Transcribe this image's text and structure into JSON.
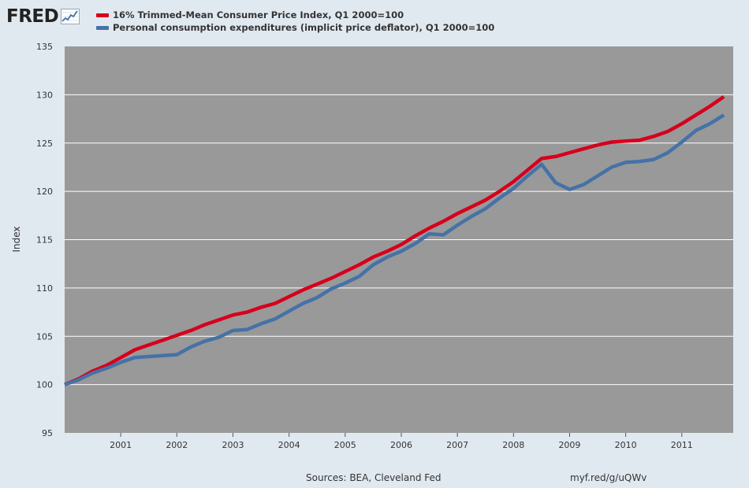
{
  "header": {
    "logo_text": "FRED",
    "logo_icon": "trend-graph-icon"
  },
  "footer": {
    "source": "Sources: BEA, Cleveland Fed",
    "url": "myf.red/g/uQWv"
  },
  "colors": {
    "page_background": "#e1e9f0",
    "plot_background": "#999999",
    "gridline": "#ffffff",
    "series_red": "#d6001c",
    "series_blue": "#4572a7"
  },
  "chart_data": {
    "type": "line",
    "ylabel": "Index",
    "xlabel": "",
    "ylim": [
      95,
      135
    ],
    "xlim": [
      "2000-01",
      "2011-12"
    ],
    "yticks": [
      "95",
      "100",
      "105",
      "110",
      "115",
      "120",
      "125",
      "130",
      "135"
    ],
    "xticks": [
      "2001",
      "2002",
      "2003",
      "2004",
      "2005",
      "2006",
      "2007",
      "2008",
      "2009",
      "2010",
      "2011"
    ],
    "grid": true,
    "legend_position": "top-left",
    "x": [
      "2000 Q1",
      "2000 Q2",
      "2000 Q3",
      "2000 Q4",
      "2001 Q1",
      "2001 Q2",
      "2001 Q3",
      "2001 Q4",
      "2002 Q1",
      "2002 Q2",
      "2002 Q3",
      "2002 Q4",
      "2003 Q1",
      "2003 Q2",
      "2003 Q3",
      "2003 Q4",
      "2004 Q1",
      "2004 Q2",
      "2004 Q3",
      "2004 Q4",
      "2005 Q1",
      "2005 Q2",
      "2005 Q3",
      "2005 Q4",
      "2006 Q1",
      "2006 Q2",
      "2006 Q3",
      "2006 Q4",
      "2007 Q1",
      "2007 Q2",
      "2007 Q3",
      "2007 Q4",
      "2008 Q1",
      "2008 Q2",
      "2008 Q3",
      "2008 Q4",
      "2009 Q1",
      "2009 Q2",
      "2009 Q3",
      "2009 Q4",
      "2010 Q1",
      "2010 Q2",
      "2010 Q3",
      "2010 Q4",
      "2011 Q1",
      "2011 Q2",
      "2011 Q3",
      "2011 Q4"
    ],
    "series": [
      {
        "name": "16% Trimmed-Mean Consumer Price Index, Q1 2000=100",
        "color": "#d6001c",
        "values": [
          100.0,
          100.6,
          101.4,
          102.0,
          102.8,
          103.6,
          104.1,
          104.6,
          105.1,
          105.6,
          106.2,
          106.7,
          107.2,
          107.5,
          108.0,
          108.4,
          109.1,
          109.8,
          110.4,
          111.0,
          111.7,
          112.4,
          113.2,
          113.8,
          114.5,
          115.4,
          116.2,
          116.9,
          117.7,
          118.4,
          119.1,
          120.0,
          121.0,
          122.2,
          123.4,
          123.6,
          124.0,
          124.4,
          124.8,
          125.1,
          125.2,
          125.3,
          125.7,
          126.2,
          127.0,
          127.9,
          128.8,
          129.8
        ]
      },
      {
        "name": "Personal consumption expenditures (implicit price deflator), Q1 2000=100",
        "color": "#4572a7",
        "values": [
          100.0,
          100.5,
          101.2,
          101.7,
          102.3,
          102.8,
          102.9,
          103.0,
          103.1,
          103.9,
          104.5,
          104.9,
          105.6,
          105.7,
          106.3,
          106.8,
          107.6,
          108.4,
          109.0,
          109.9,
          110.5,
          111.2,
          112.4,
          113.2,
          113.8,
          114.6,
          115.6,
          115.5,
          116.5,
          117.4,
          118.2,
          119.3,
          120.3,
          121.6,
          122.8,
          120.9,
          120.2,
          120.7,
          121.6,
          122.5,
          123.0,
          123.1,
          123.3,
          124.0,
          125.1,
          126.3,
          127.0,
          127.9
        ]
      }
    ]
  }
}
